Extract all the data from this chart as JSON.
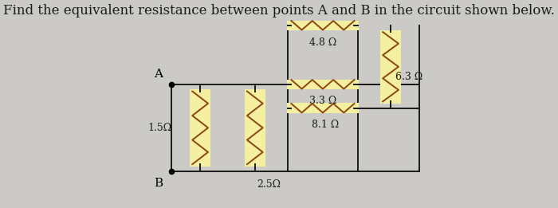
{
  "title": "Find the equivalent resistance between points A and B in the circuit shown below.",
  "title_fontsize": 12,
  "bg_color": "#cccac7",
  "wire_color": "#1a1a1a",
  "resistor_color": "#8B4513",
  "label_color": "#1a1a1a",
  "highlight_color": "#f5f0a0",
  "point_A": [
    0.255,
    0.595
  ],
  "point_B": [
    0.255,
    0.175
  ],
  "labels": {
    "R1": "1.5Ω",
    "R2": "2.5Ω",
    "R3": "4.8 Ω",
    "R4": "3.3 Ω",
    "R5": "8.1 Ω",
    "R6": "6.3 Ω"
  }
}
